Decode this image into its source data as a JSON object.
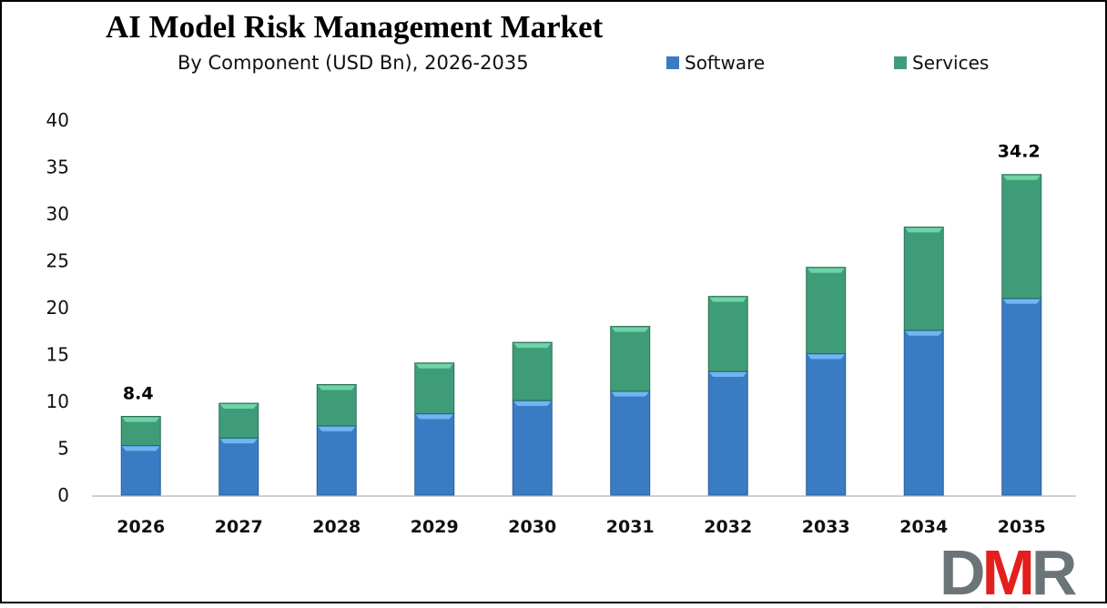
{
  "chart_data": {
    "type": "bar",
    "stacked": true,
    "title": "AI Model Risk Management Market",
    "subtitle": "By Component (USD Bn), 2026-2035",
    "xlabel": "",
    "ylabel": "",
    "categories": [
      "2026",
      "2027",
      "2028",
      "2029",
      "2030",
      "2031",
      "2032",
      "2033",
      "2034",
      "2035"
    ],
    "series": [
      {
        "name": "Software",
        "color": "#3a7cc4",
        "values": [
          5.3,
          6.1,
          7.4,
          8.7,
          10.1,
          11.1,
          13.2,
          15.1,
          17.6,
          21.0
        ]
      },
      {
        "name": "Services",
        "color": "#3f9c78",
        "values": [
          3.1,
          3.7,
          4.4,
          5.4,
          6.2,
          6.9,
          8.0,
          9.2,
          11.0,
          13.2
        ]
      }
    ],
    "data_labels": [
      {
        "category": "2026",
        "text": "8.4"
      },
      {
        "category": "2035",
        "text": "34.2"
      }
    ],
    "yticks": [
      "0",
      "5",
      "10",
      "15",
      "20",
      "25",
      "30",
      "35",
      "40"
    ],
    "ylim": [
      0,
      40
    ],
    "grid": false,
    "legend_position": "top-right"
  },
  "logo": {
    "text": "DMR",
    "colors": {
      "D": "#6b7476",
      "M": "#e3201b",
      "R": "#6b7476"
    }
  }
}
